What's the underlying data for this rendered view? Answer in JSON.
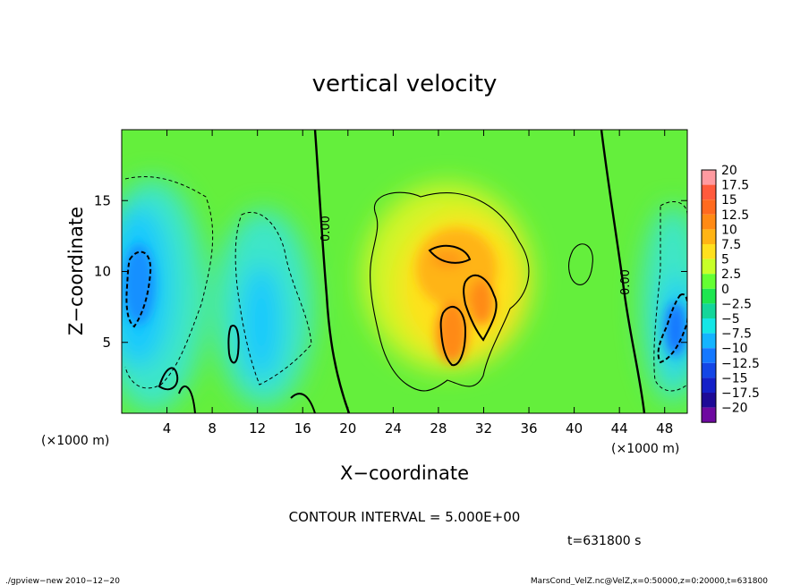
{
  "chart_data": {
    "type": "heatmap",
    "title": "vertical velocity",
    "xlabel": "X−coordinate",
    "ylabel": "Z−coordinate",
    "x_unit_left": "(×1000 m)",
    "x_unit_right": "(×1000 m)",
    "xlim": [
      0,
      50
    ],
    "ylim": [
      0,
      20
    ],
    "x_ticks": [
      4,
      8,
      12,
      16,
      20,
      24,
      28,
      32,
      36,
      40,
      44,
      48
    ],
    "y_ticks": [
      5,
      10,
      15
    ],
    "colorbar_levels": [
      "20",
      "17.5",
      "15",
      "12.5",
      "10",
      "7.5",
      "5",
      "2.5",
      "0",
      "−2.5",
      "−5",
      "−7.5",
      "−10",
      "−12.5",
      "−15",
      "−17.5",
      "−20"
    ],
    "colorbar_colors": [
      "#ff9aa0",
      "#ff5a3c",
      "#ff6a1e",
      "#ff8a14",
      "#ffb414",
      "#ffe01e",
      "#c8ff28",
      "#64ff32",
      "#1ee650",
      "#14d69a",
      "#14e6e6",
      "#14b4ff",
      "#1478ff",
      "#1446e6",
      "#1420c8",
      "#1e0a96",
      "#6e0aa0"
    ],
    "contour_interval": "CONTOUR INTERVAL = 5.000E+00",
    "contour_labels": [
      "0.00",
      "0.00"
    ],
    "time_label": "t=631800  s",
    "cells": [
      {
        "x": 2.0,
        "z": 10.5,
        "w": -10
      },
      {
        "x": 12.2,
        "z": 8.0,
        "w": -5
      },
      {
        "x": 30.0,
        "z": 6.5,
        "w": 12.5
      },
      {
        "x": 31.5,
        "z": 8.5,
        "w": 12.5
      },
      {
        "x": 29.5,
        "z": 11.5,
        "w": 7.5
      },
      {
        "x": 48.5,
        "z": 6.0,
        "w": -10
      }
    ]
  },
  "footer": {
    "left": "./gpview−new   2010−12−20",
    "right": "MarsCond_VelZ.nc@VelZ,x=0:50000,z=0:20000,t=631800"
  }
}
